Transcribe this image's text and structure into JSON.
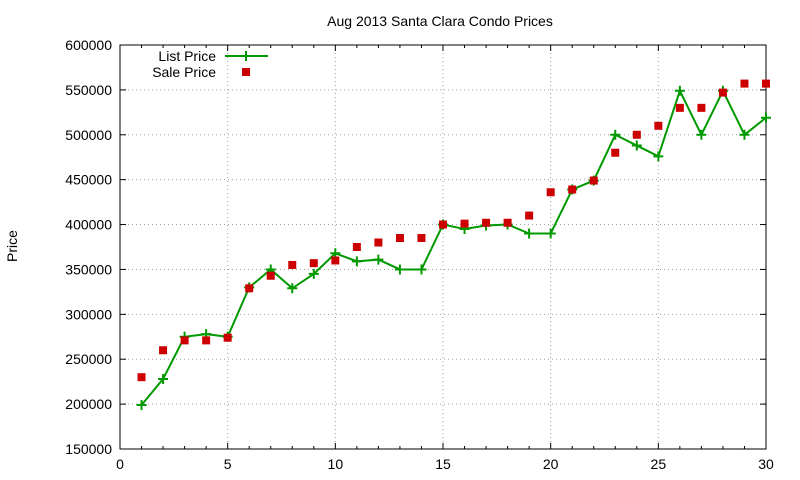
{
  "chart_data": {
    "type": "line",
    "title": "Aug 2013 Santa Clara Condo Prices",
    "xlabel": "",
    "ylabel": "Price",
    "xlim": [
      0,
      30
    ],
    "ylim": [
      150000,
      600000
    ],
    "xticks": [
      0,
      5,
      10,
      15,
      20,
      25,
      30
    ],
    "yticks": [
      150000,
      200000,
      250000,
      300000,
      350000,
      400000,
      450000,
      500000,
      550000,
      600000
    ],
    "grid": true,
    "legend_position": "top-left",
    "series": [
      {
        "name": "List Price",
        "style": "line-with-plus-markers",
        "color": "#009900",
        "x": [
          1,
          2,
          3,
          4,
          5,
          6,
          7,
          8,
          9,
          10,
          11,
          12,
          13,
          14,
          15,
          16,
          17,
          18,
          19,
          20,
          21,
          22,
          23,
          24,
          25,
          26,
          27,
          28,
          29,
          30
        ],
        "y": [
          199000,
          228000,
          275000,
          278000,
          275000,
          330000,
          350000,
          329000,
          345000,
          368000,
          359000,
          361000,
          350000,
          350000,
          400000,
          395000,
          399000,
          400000,
          390000,
          390000,
          439000,
          449000,
          500000,
          488000,
          476000,
          549000,
          500000,
          549000,
          500000,
          519000
        ]
      },
      {
        "name": "Sale Price",
        "style": "square-markers",
        "color": "#cc0000",
        "x": [
          1,
          2,
          3,
          4,
          5,
          6,
          7,
          8,
          9,
          10,
          11,
          12,
          13,
          14,
          15,
          16,
          17,
          18,
          19,
          20,
          21,
          22,
          23,
          24,
          25,
          26,
          27,
          28,
          29,
          30
        ],
        "y": [
          230000,
          260000,
          271000,
          271000,
          274000,
          329000,
          343000,
          355000,
          357000,
          360000,
          375000,
          380000,
          385000,
          385000,
          400000,
          401000,
          402000,
          402000,
          410000,
          436000,
          439000,
          449000,
          480000,
          500000,
          510000,
          530000,
          530000,
          547000,
          557000,
          557000
        ]
      }
    ]
  }
}
